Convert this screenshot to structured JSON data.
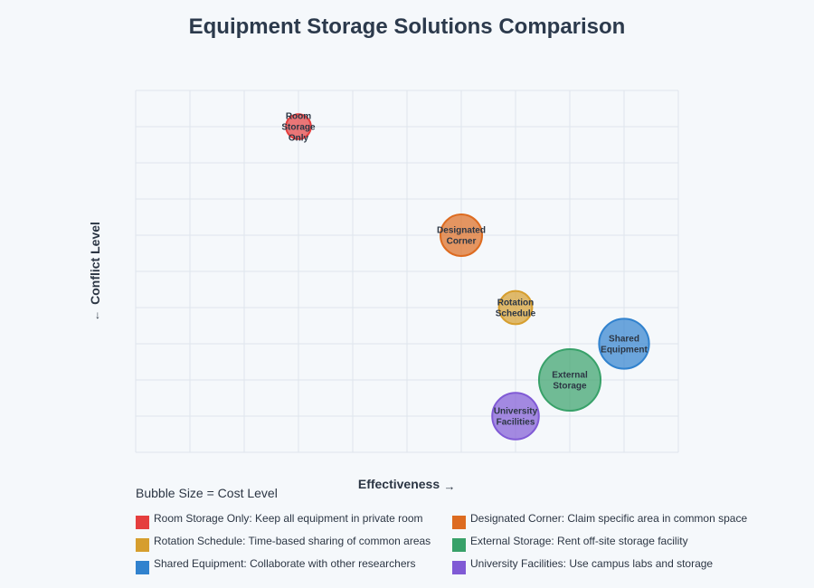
{
  "chart_data": {
    "type": "scatter",
    "title": "Equipment Storage Solutions Comparison",
    "xlabel": "Effectiveness",
    "ylabel": "Conflict Level",
    "x_arrow": "→",
    "y_arrow": "↓",
    "xlim": [
      0,
      10
    ],
    "ylim": [
      0,
      10
    ],
    "grid": true,
    "size_note": "Bubble Size = Cost Level",
    "points": [
      {
        "name": "Room Storage Only",
        "label_lines": [
          "Room",
          "Storage",
          "Only"
        ],
        "x": 3,
        "y": 9,
        "size": 1.5,
        "color": "#e53e3e"
      },
      {
        "name": "Designated Corner",
        "label_lines": [
          "Designated",
          "Corner"
        ],
        "x": 6,
        "y": 6,
        "size": 2.5,
        "color": "#dd6b20"
      },
      {
        "name": "Rotation Schedule",
        "label_lines": [
          "Rotation",
          "Schedule"
        ],
        "x": 7,
        "y": 4,
        "size": 2,
        "color": "#d69e2e"
      },
      {
        "name": "Shared Equipment",
        "label_lines": [
          "Shared",
          "Equipment"
        ],
        "x": 9,
        "y": 3,
        "size": 3,
        "color": "#3182ce"
      },
      {
        "name": "External Storage",
        "label_lines": [
          "External",
          "Storage"
        ],
        "x": 8,
        "y": 2,
        "size": 3.7,
        "color": "#38a169"
      },
      {
        "name": "University Facilities",
        "label_lines": [
          "University",
          "Facilities"
        ],
        "x": 7,
        "y": 1,
        "size": 2.8,
        "color": "#805ad5"
      }
    ],
    "legend": [
      {
        "text": "Room Storage Only: Keep all equipment in private room",
        "color": "#e53e3e"
      },
      {
        "text": "Designated Corner: Claim specific area in common space",
        "color": "#dd6b20"
      },
      {
        "text": "Rotation Schedule: Time-based sharing of common areas",
        "color": "#d69e2e"
      },
      {
        "text": "External Storage: Rent off-site storage facility",
        "color": "#38a169"
      },
      {
        "text": "Shared Equipment: Collaborate with other researchers",
        "color": "#3182ce"
      },
      {
        "text": "University Facilities: Use campus labs and storage",
        "color": "#805ad5"
      }
    ]
  }
}
